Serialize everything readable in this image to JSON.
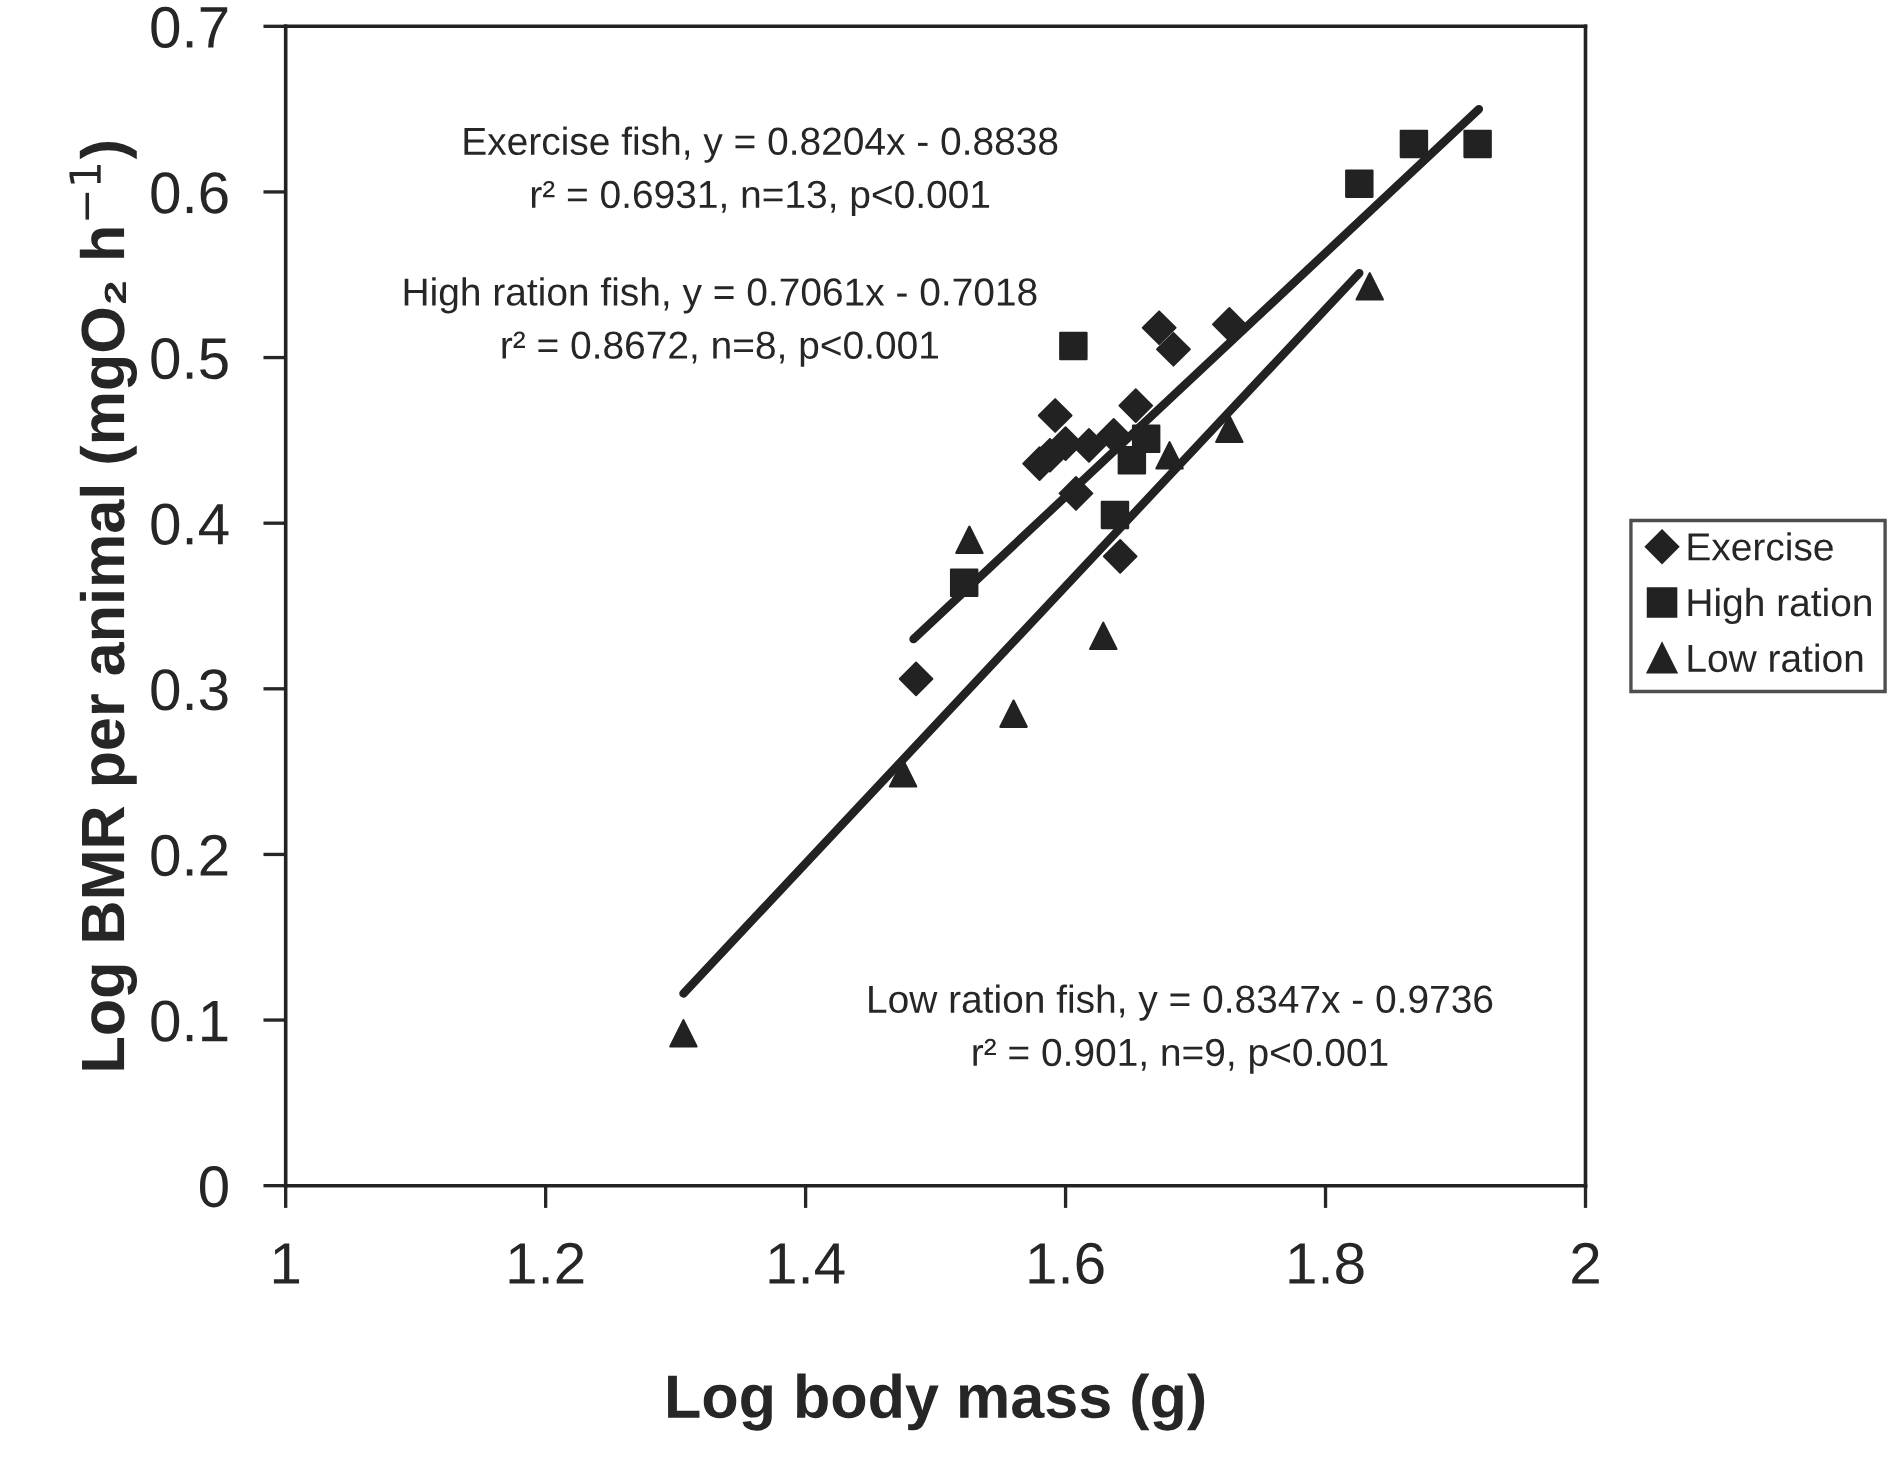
{
  "chart_data": {
    "type": "scatter",
    "xlabel": "Log body mass (g)",
    "ylabel": "Log BMR per animal (mgO₂ h$^{−1}$)",
    "xlim": [
      1,
      2
    ],
    "xticks": [
      1,
      1.2,
      1.4,
      1.6,
      1.8,
      2
    ],
    "ylim": [
      0,
      0.7
    ],
    "yticks": [
      0,
      0.1,
      0.2,
      0.3,
      0.4,
      0.5,
      0.6,
      0.7
    ],
    "grid": false,
    "legend": "right",
    "series": [
      {
        "name": "Exercise",
        "color": "#222222",
        "marker": "diamond",
        "x": [
          1.672,
          1.726,
          1.683,
          1.592,
          1.58,
          1.6,
          1.608,
          1.637,
          1.642,
          1.485,
          1.654,
          1.588,
          1.618
        ],
        "values": [
          0.518,
          0.52,
          0.505,
          0.465,
          0.436,
          0.448,
          0.418,
          0.453,
          0.38,
          0.306,
          0.471,
          0.441,
          0.447
        ]
      },
      {
        "name": "High ration",
        "color": "#222222",
        "marker": "square",
        "x": [
          1.606,
          1.651,
          1.662,
          1.638,
          1.522,
          1.826,
          1.868,
          1.917
        ],
        "values": [
          0.507,
          0.438,
          0.451,
          0.405,
          0.364,
          0.605,
          0.629,
          0.629
        ]
      },
      {
        "name": "Low ration",
        "color": "#222222",
        "marker": "triangle",
        "x": [
          1.526,
          1.68,
          1.726,
          1.629,
          1.56,
          1.475,
          1.834,
          1.306
        ],
        "values": [
          0.39,
          0.441,
          0.457,
          0.332,
          0.285,
          0.249,
          0.543,
          0.092
        ]
      },
      {
        "type": "line",
        "color": "#222222",
        "x": [
          1.483,
          1.918
        ],
        "values": [
          0.33,
          0.65
        ]
      },
      {
        "type": "line",
        "color": "#222222",
        "x": [
          1.306,
          1.826
        ],
        "values": [
          0.116,
          0.551
        ]
      }
    ],
    "annotations": [
      "Exercise fish, y = 0.8204x - 0.8838\nr² = 0.6931, n=13, p<0.001",
      "High ration fish, y = 0.7061x - 0.7018\nr² = 0.8672, n=8, p<0.001",
      "Low ration fish, y = 0.8347x - 0.9736\nr² = 0.901, n=9, p<0.001"
    ]
  }
}
